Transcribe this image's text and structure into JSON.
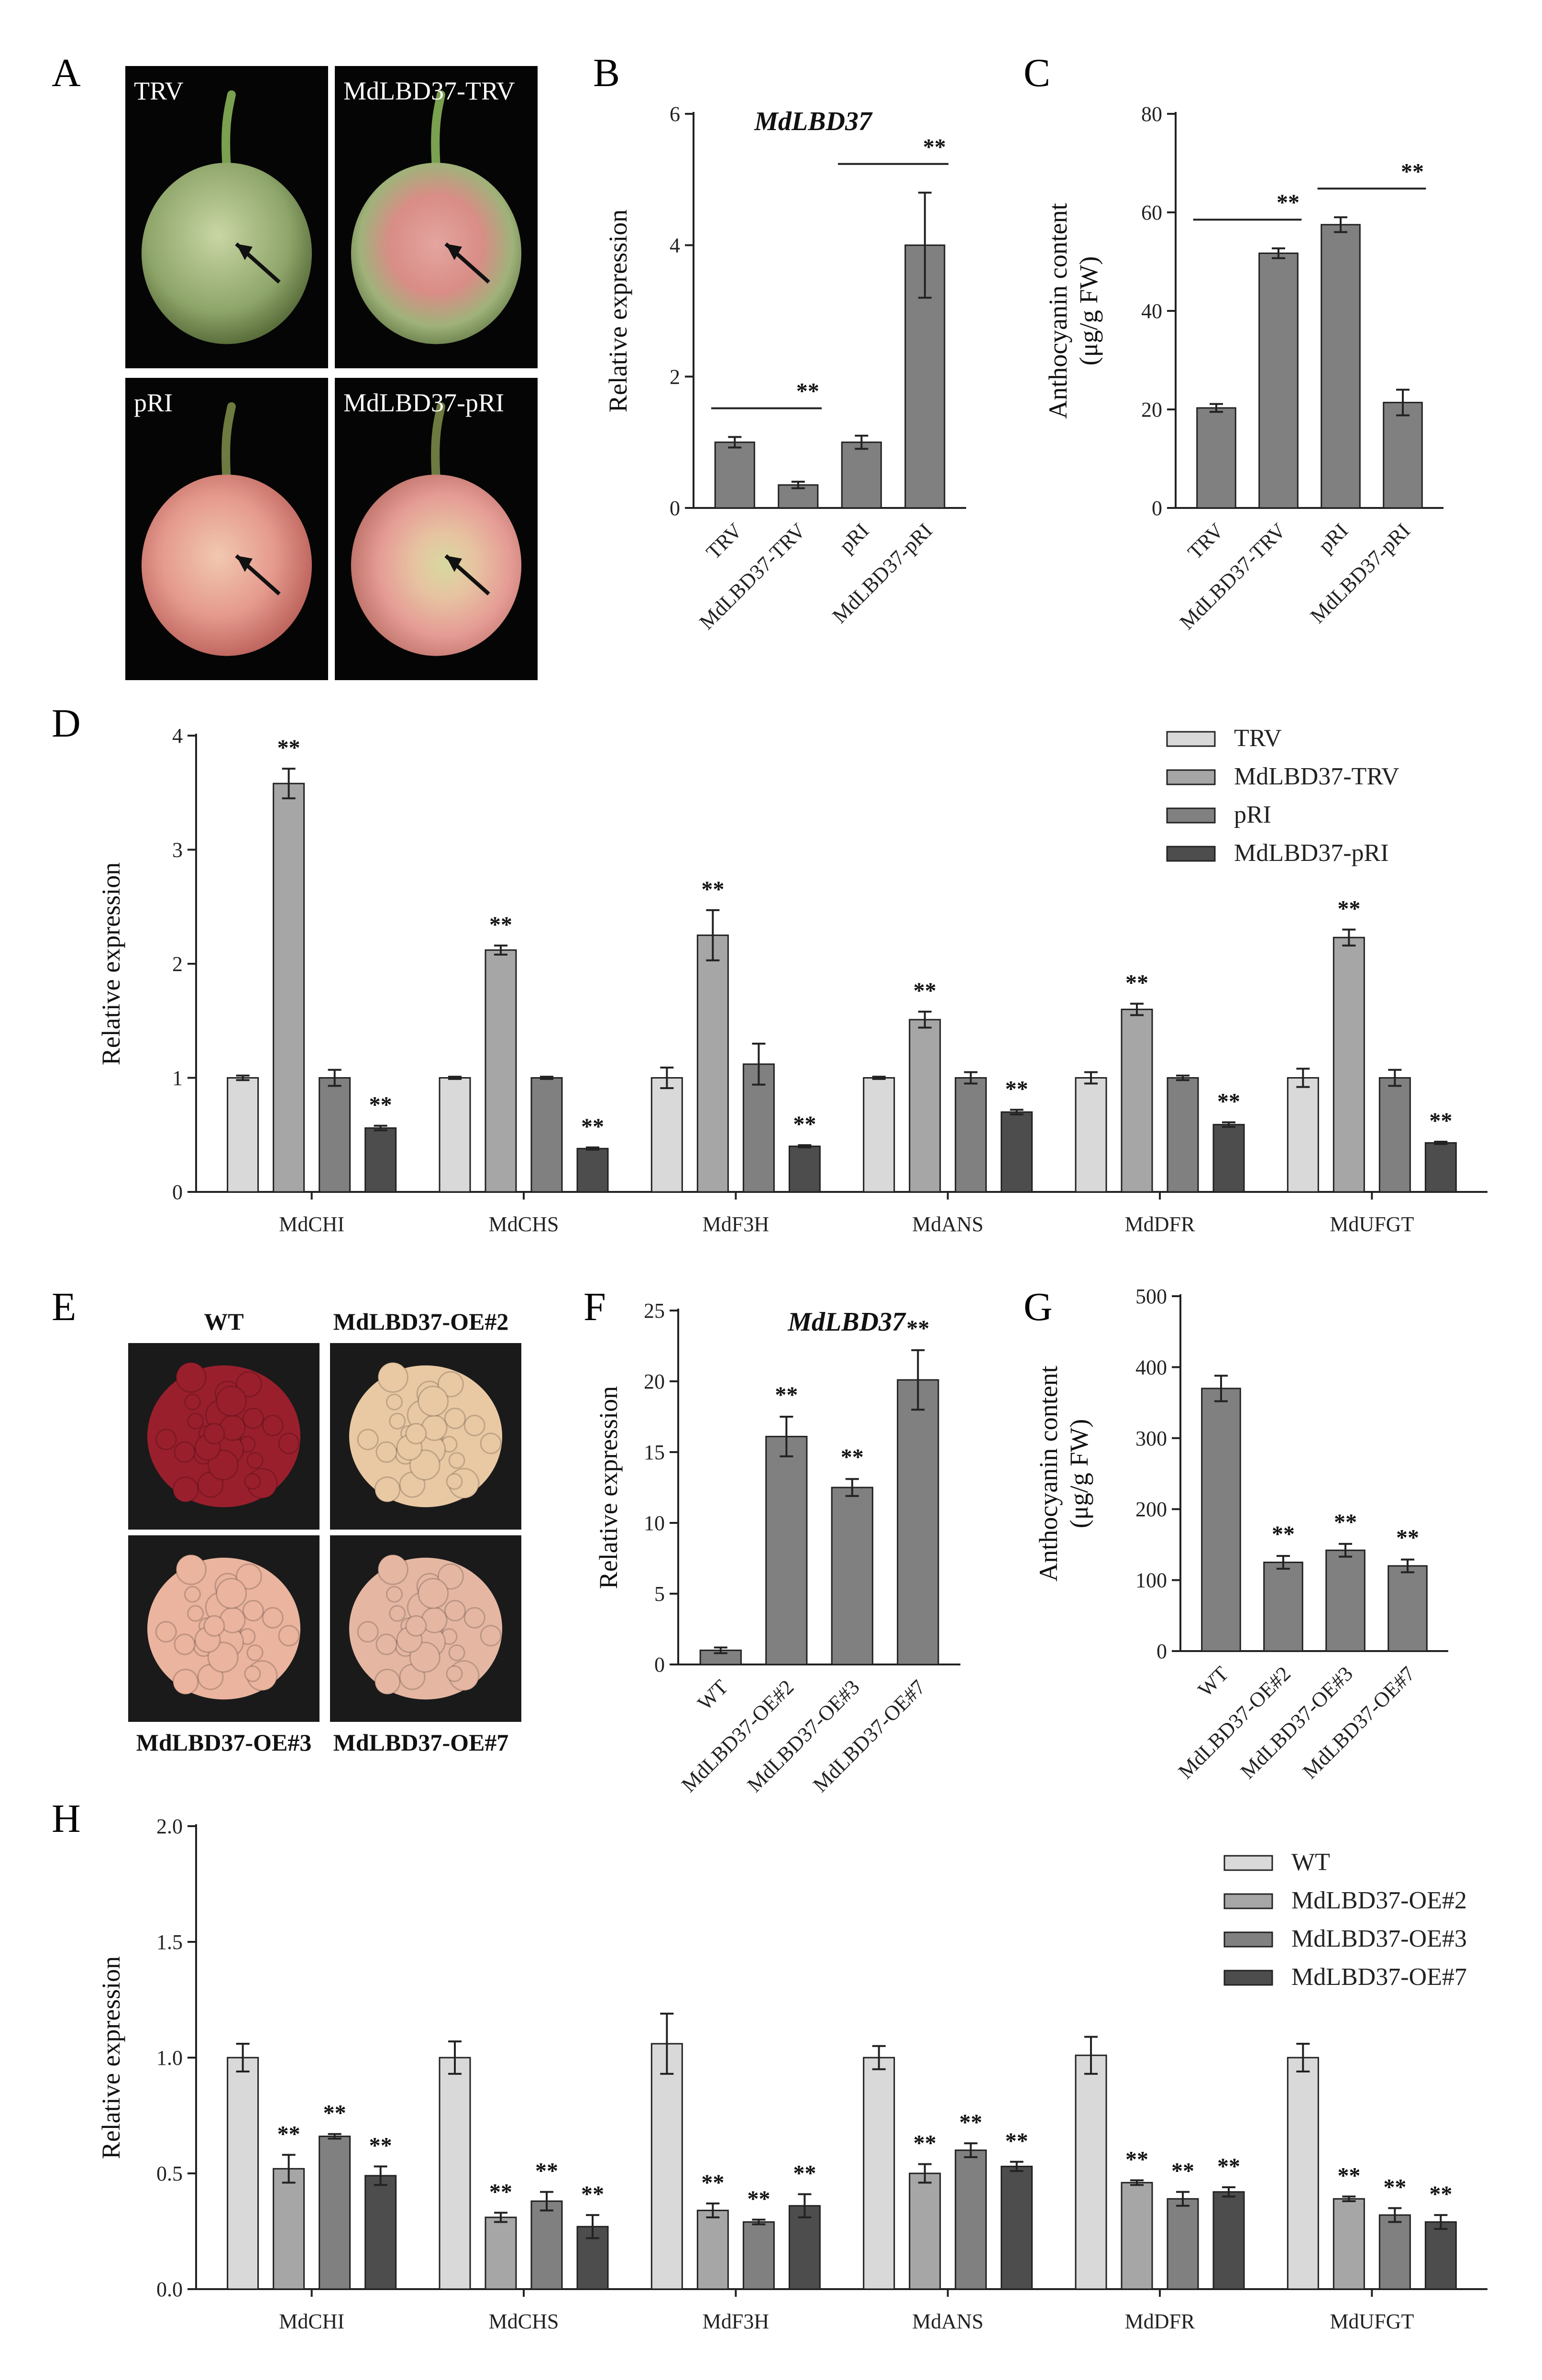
{
  "panels": {
    "A": {
      "letter": "A",
      "photos": [
        {
          "label": "TRV",
          "fruit": "green"
        },
        {
          "label": "MdLBD37-TRV",
          "fruit": "green-red"
        },
        {
          "label": "pRI",
          "fruit": "red"
        },
        {
          "label": "MdLBD37-pRI",
          "fruit": "red-green"
        }
      ]
    },
    "E": {
      "letter": "E",
      "photos": [
        {
          "label": "WT",
          "color": "#9a1f2d"
        },
        {
          "label": "MdLBD37-OE#2",
          "color": "#e9c9a4"
        },
        {
          "label": "MdLBD37-OE#3",
          "color": "#eab49e"
        },
        {
          "label": "MdLBD37-OE#7",
          "color": "#e5b7a3"
        }
      ]
    }
  },
  "chart_data": [
    {
      "panel": "B",
      "type": "bar",
      "title": "MdLBD37",
      "ylabel": "Relative expression",
      "categories": [
        "TRV",
        "MdLBD37-TRV",
        "pRI",
        "MdLBD37-pRI"
      ],
      "values": [
        1.0,
        0.35,
        1.0,
        4.0
      ],
      "errors": [
        0.08,
        0.05,
        0.1,
        0.8
      ],
      "ylim": [
        0,
        6
      ],
      "yticks": [
        "0",
        "2",
        "4",
        "6"
      ],
      "significance": [
        {
          "between": [
            0,
            1
          ],
          "label": "**"
        },
        {
          "between": [
            2,
            3
          ],
          "label": "**"
        }
      ],
      "bar_color": "#808080"
    },
    {
      "panel": "C",
      "type": "bar",
      "ylabel": "Anthocyanin content (μg/g FW)",
      "categories": [
        "TRV",
        "MdLBD37-TRV",
        "pRI",
        "MdLBD37-pRI"
      ],
      "values": [
        20.3,
        51.7,
        57.5,
        21.4
      ],
      "errors": [
        0.8,
        1.0,
        1.5,
        2.6
      ],
      "ylim": [
        0,
        80
      ],
      "yticks": [
        "0",
        "20",
        "40",
        "60",
        "80"
      ],
      "significance": [
        {
          "between": [
            0,
            1
          ],
          "label": "**"
        },
        {
          "between": [
            2,
            3
          ],
          "label": "**"
        }
      ],
      "bar_color": "#808080"
    },
    {
      "panel": "D",
      "type": "bar",
      "ylabel": "Relative expression",
      "categories": [
        "MdCHI",
        "MdCHS",
        "MdF3H",
        "MdANS",
        "MdDFR",
        "MdUFGT"
      ],
      "series": [
        {
          "name": "TRV",
          "color": "#d9d9d9",
          "values": [
            1.0,
            1.0,
            1.0,
            1.0,
            1.0,
            1.0
          ],
          "errors": [
            0.02,
            0.01,
            0.09,
            0.01,
            0.05,
            0.08
          ],
          "sig": [
            "",
            "",
            "",
            "",
            "",
            ""
          ]
        },
        {
          "name": "MdLBD37-TRV",
          "color": "#a6a6a6",
          "values": [
            3.58,
            2.12,
            2.25,
            1.51,
            1.6,
            2.23
          ],
          "errors": [
            0.13,
            0.04,
            0.22,
            0.07,
            0.05,
            0.07
          ],
          "sig": [
            "**",
            "**",
            "**",
            "**",
            "**",
            "**"
          ]
        },
        {
          "name": "pRI",
          "color": "#808080",
          "values": [
            1.0,
            1.0,
            1.12,
            1.0,
            1.0,
            1.0
          ],
          "errors": [
            0.07,
            0.01,
            0.18,
            0.05,
            0.02,
            0.07
          ],
          "sig": [
            "",
            "",
            "",
            "",
            "",
            ""
          ]
        },
        {
          "name": "MdLBD37-pRI",
          "color": "#4d4d4d",
          "values": [
            0.56,
            0.38,
            0.4,
            0.7,
            0.59,
            0.43
          ],
          "errors": [
            0.02,
            0.01,
            0.01,
            0.02,
            0.02,
            0.01
          ],
          "sig": [
            "**",
            "**",
            "**",
            "**",
            "**",
            "**"
          ]
        }
      ],
      "ylim": [
        0,
        4
      ],
      "yticks": [
        "0",
        "1",
        "2",
        "3",
        "4"
      ],
      "legend": "top-right"
    },
    {
      "panel": "F",
      "type": "bar",
      "title": "MdLBD37",
      "ylabel": "Relative expression",
      "categories": [
        "WT",
        "MdLBD37-OE#2",
        "MdLBD37-OE#3",
        "MdLBD37-OE#7"
      ],
      "values": [
        1.0,
        16.1,
        12.5,
        20.1
      ],
      "errors": [
        0.2,
        1.4,
        0.6,
        2.1
      ],
      "ylim": [
        0,
        25
      ],
      "yticks": [
        "0",
        "5",
        "10",
        "15",
        "20",
        "25"
      ],
      "sig": [
        "",
        "**",
        "**",
        "**"
      ],
      "bar_color": "#808080"
    },
    {
      "panel": "G",
      "type": "bar",
      "ylabel": "Anthocyanin content (μg/g FW)",
      "categories": [
        "WT",
        "MdLBD37-OE#2",
        "MdLBD37-OE#3",
        "MdLBD37-OE#7"
      ],
      "values": [
        370,
        125,
        142,
        120
      ],
      "errors": [
        18,
        9,
        9,
        9
      ],
      "ylim": [
        0,
        500
      ],
      "yticks": [
        "0",
        "100",
        "200",
        "300",
        "400",
        "500"
      ],
      "sig": [
        "",
        "**",
        "**",
        "**"
      ],
      "bar_color": "#808080"
    },
    {
      "panel": "H",
      "type": "bar",
      "ylabel": "Relative expression",
      "categories": [
        "MdCHI",
        "MdCHS",
        "MdF3H",
        "MdANS",
        "MdDFR",
        "MdUFGT"
      ],
      "series": [
        {
          "name": "WT",
          "color": "#d9d9d9",
          "values": [
            1.0,
            1.0,
            1.06,
            1.0,
            1.01,
            1.0
          ],
          "errors": [
            0.06,
            0.07,
            0.13,
            0.05,
            0.08,
            0.06
          ],
          "sig": [
            "",
            "",
            "",
            "",
            "",
            ""
          ]
        },
        {
          "name": "MdLBD37-OE#2",
          "color": "#a6a6a6",
          "values": [
            0.52,
            0.31,
            0.34,
            0.5,
            0.46,
            0.39
          ],
          "errors": [
            0.06,
            0.02,
            0.03,
            0.04,
            0.01,
            0.01
          ],
          "sig": [
            "**",
            "**",
            "**",
            "**",
            "**",
            "**"
          ]
        },
        {
          "name": "MdLBD37-OE#3",
          "color": "#808080",
          "values": [
            0.66,
            0.38,
            0.29,
            0.6,
            0.39,
            0.32
          ],
          "errors": [
            0.01,
            0.04,
            0.01,
            0.03,
            0.03,
            0.03
          ],
          "sig": [
            "**",
            "**",
            "**",
            "**",
            "**",
            "**"
          ]
        },
        {
          "name": "MdLBD37-OE#7",
          "color": "#4d4d4d",
          "values": [
            0.49,
            0.27,
            0.36,
            0.53,
            0.42,
            0.29
          ],
          "errors": [
            0.04,
            0.05,
            0.05,
            0.02,
            0.02,
            0.03
          ],
          "sig": [
            "**",
            "**",
            "**",
            "**",
            "**",
            "**"
          ]
        }
      ],
      "ylim": [
        0,
        2
      ],
      "yticks": [
        "0.0",
        "0.5",
        "1.0",
        "1.5",
        "2.0"
      ],
      "legend": "top-right"
    }
  ]
}
